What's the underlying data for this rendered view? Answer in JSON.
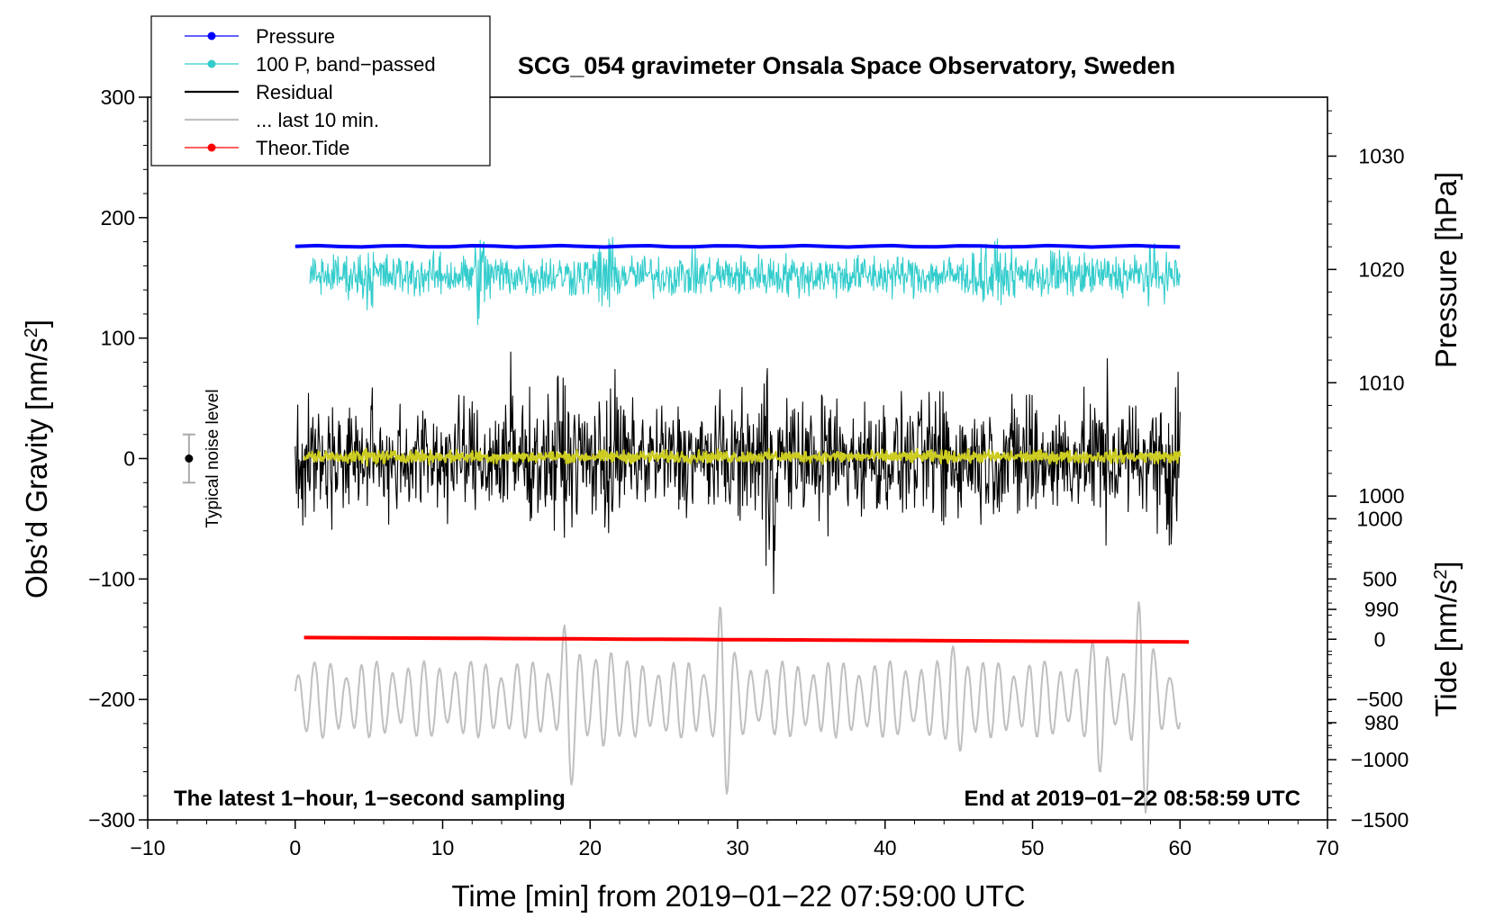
{
  "chart_data": {
    "type": "line",
    "title": "SCG_054 gravimeter Onsala Space Observatory, Sweden",
    "xlabel": "Time [min] from 2019−01−22 07:59:00 UTC",
    "ylabel": "Obs’d Gravity [nm/s",
    "ylabel_sup": "2",
    "ylabel_end": "]",
    "y2label": "Pressure [hPa]",
    "y3label": "Tide [nm/s",
    "y3label_sup": "2",
    "y3label_end": "]",
    "xlim": [
      -10,
      70
    ],
    "ylim": [
      -300,
      300
    ],
    "xticks": [
      -10,
      0,
      10,
      20,
      30,
      40,
      50,
      60,
      70
    ],
    "xtick_labels": [
      "−10",
      "0",
      "10",
      "20",
      "30",
      "40",
      "50",
      "60",
      "70"
    ],
    "yticks": [
      -300,
      -200,
      -100,
      0,
      100,
      200,
      300
    ],
    "ytick_labels": [
      "−300",
      "−200",
      "−100",
      "0",
      "100",
      "200",
      "300"
    ],
    "pressure_ticks": [
      980,
      990,
      1000,
      1010,
      1020,
      1030
    ],
    "pressure_tick_labels": [
      "980",
      "990",
      "1000",
      "1010",
      "1020",
      "1030"
    ],
    "pressure_axis": {
      "value_at_gravity_300": 1035.2,
      "hpa_per_gravity_unit": 0.1063
    },
    "tide_ticks": [
      -1500,
      -1000,
      -500,
      0,
      500,
      1000
    ],
    "tide_tick_labels": [
      "−1500",
      "−1000",
      "−500",
      "0",
      "500",
      "1000"
    ],
    "tide_axis": {
      "gravity_at_tide_0": -150,
      "gravity_per_tide_unit": 0.1
    },
    "annotations": {
      "left_note": "The latest 1−hour, 1−second sampling",
      "right_note": "End at 2019−01−22 08:58:59 UTC",
      "noise_label": "Typical noise level",
      "noise_bar": {
        "x": -7.2,
        "center": 0,
        "half_width": 20
      }
    },
    "legend_position": "top-left",
    "series": [
      {
        "name": "Pressure",
        "color": "#0000ff",
        "style": "line-dot",
        "kind": "flat",
        "level": 176.2,
        "amplitude": 0.6,
        "x_start": 0,
        "x_end": 60
      },
      {
        "name": "100 P, band−passed",
        "color": "#33cccc",
        "style": "line-dot",
        "kind": "noise",
        "center": 152,
        "amplitude": 12,
        "x_start": 1,
        "x_end": 60,
        "bursts": [
          [
            5,
            1.6
          ],
          [
            12.6,
            2.4
          ],
          [
            21,
            2.2
          ],
          [
            47,
            2.2
          ],
          [
            51.5,
            1.5
          ],
          [
            58,
            1.4
          ]
        ]
      },
      {
        "name": "Residual",
        "color": "#000000",
        "style": "line",
        "kind": "noise",
        "center": 0,
        "amplitude": 32,
        "x_start": 0,
        "x_end": 60,
        "bursts": [
          [
            14.8,
            1.9
          ],
          [
            18,
            1.7
          ],
          [
            21.4,
            1.6
          ],
          [
            32.2,
            2.4
          ],
          [
            36,
            1.5
          ],
          [
            44,
            1.6
          ],
          [
            49.5,
            1.6
          ],
          [
            55,
            1.5
          ],
          [
            59.5,
            2.0
          ]
        ]
      },
      {
        "name": "... last 10 min.",
        "color": "#c0c0c0",
        "style": "line",
        "kind": "wave",
        "center": -200,
        "amplitude": 32,
        "x_start": 0,
        "x_end": 60,
        "bursts": [
          [
            18.5,
            2.6
          ],
          [
            21,
            2.2
          ],
          [
            29,
            3.0
          ],
          [
            45,
            2.1
          ],
          [
            54.5,
            2.0
          ],
          [
            57.5,
            3.2
          ]
        ]
      },
      {
        "name": "Theor.Tide",
        "color": "#ff0000",
        "style": "line-dot",
        "kind": "flat",
        "level": -148.6,
        "slope": -0.06,
        "amplitude": 0,
        "x_start": 0.6,
        "x_end": 60.6
      },
      {
        "name": "",
        "color": "#cccc22",
        "style": "line",
        "kind": "noise",
        "center": 1.5,
        "amplitude": 3.5,
        "x_start": 0.6,
        "x_end": 60,
        "bursts": [
          [
            5,
            1.5
          ]
        ]
      }
    ]
  }
}
